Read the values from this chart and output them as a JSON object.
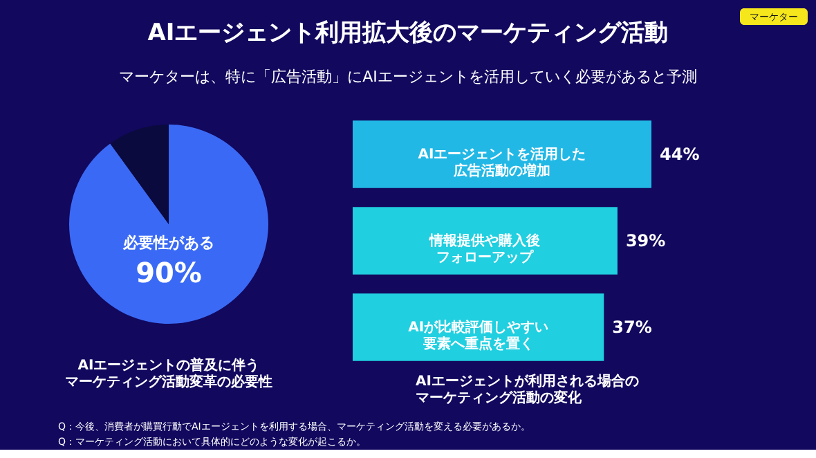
{
  "chart_data": [
    {
      "type": "pie",
      "title": "AIエージェント利用拡大後のマーケティング活動",
      "subtitle": "マーケターは、特に「広告活動」にAIエージェントを活用していく必要があると予測",
      "categories": [
        "必要性がある",
        null
      ],
      "values": [
        90,
        10
      ],
      "colors": [
        "#3a6af5",
        "#0b0a3e"
      ],
      "value_labels": [
        "90%",
        null
      ],
      "annotations": [
        "マーケター",
        "AIエージェントの普及に伴うマーケティング活動変革の必要性"
      ],
      "legend": false
    },
    {
      "type": "bar",
      "orientation": "horizontal",
      "categories": [
        "AIエージェントを活用した広告活動の増加",
        "情報提供や購入後フォローアップ",
        "AIが比較評価しやすい要素へ重点を置く"
      ],
      "values": [
        44,
        39,
        37
      ],
      "colors": [
        "#22b8e6",
        "#20cfe0",
        "#20cfe0"
      ],
      "value_labels": [
        "44%",
        "39%",
        "37%"
      ],
      "xlabel": "AIエージェントが利用される場合のマーケティング活動の変化",
      "annotations": [
        "Q：今後、消費者が購買行動でAIエージェントを利用する場合、マーケティング活動を変える必要があるか。",
        "Q：マーケティング活動において具体的にどのような変化が起こるか。"
      ],
      "tick_labels": false,
      "legend": false
    }
  ]
}
